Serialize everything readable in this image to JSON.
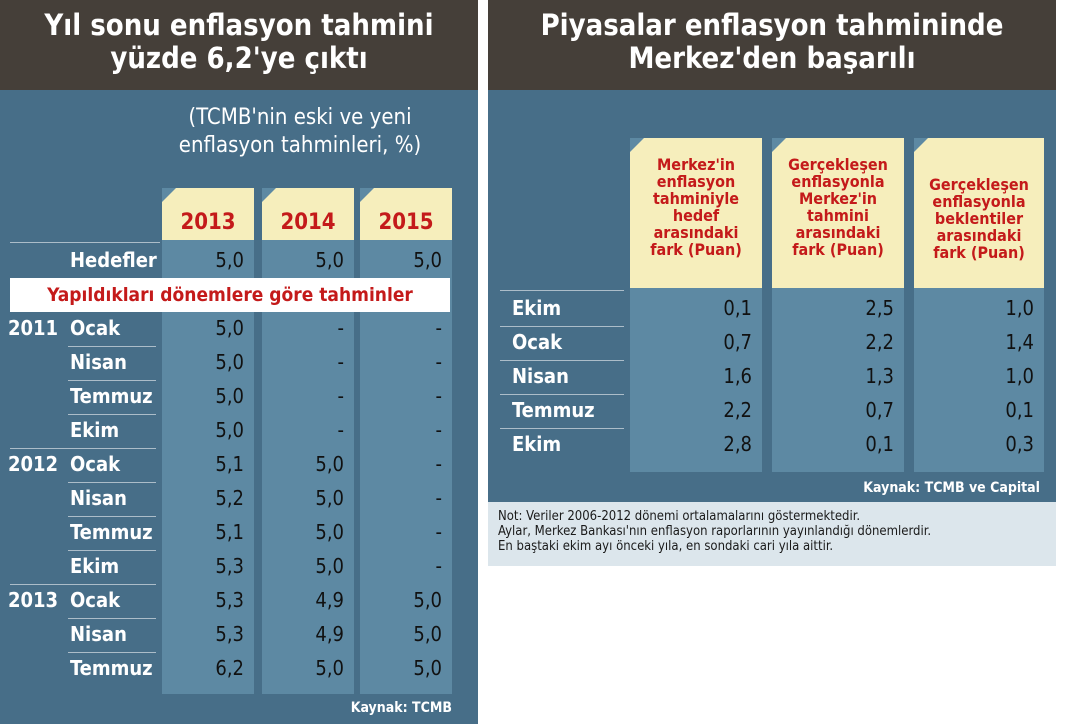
{
  "left": {
    "title_line1": "Yıl sonu enflasyon tahmini",
    "title_line2": "yüzde 6,2'ye çıktı",
    "subtitle_line1": "(TCMB'nin eski ve yeni",
    "subtitle_line2": "enflasyon tahminleri, %)",
    "columns": [
      "2013",
      "2014",
      "2015"
    ],
    "targets_label": "Hedefler",
    "targets": [
      "5,0",
      "5,0",
      "5,0"
    ],
    "banner": "Yapıldıkları dönemlere göre tahminler",
    "years": [
      "2011",
      "2012",
      "2013"
    ],
    "rows": [
      {
        "label": "Ocak",
        "v": [
          "5,0",
          "-",
          "-"
        ]
      },
      {
        "label": "Nisan",
        "v": [
          "5,0",
          "-",
          "-"
        ]
      },
      {
        "label": "Temmuz",
        "v": [
          "5,0",
          "-",
          "-"
        ]
      },
      {
        "label": "Ekim",
        "v": [
          "5,0",
          "-",
          "-"
        ]
      },
      {
        "label": "Ocak",
        "v": [
          "5,1",
          "5,0",
          "-"
        ]
      },
      {
        "label": "Nisan",
        "v": [
          "5,2",
          "5,0",
          "-"
        ]
      },
      {
        "label": "Temmuz",
        "v": [
          "5,1",
          "5,0",
          "-"
        ]
      },
      {
        "label": "Ekim",
        "v": [
          "5,3",
          "5,0",
          "-"
        ]
      },
      {
        "label": "Ocak",
        "v": [
          "5,3",
          "4,9",
          "5,0"
        ]
      },
      {
        "label": "Nisan",
        "v": [
          "5,3",
          "4,9",
          "5,0"
        ]
      },
      {
        "label": "Temmuz",
        "v": [
          "6,2",
          "5,0",
          "5,0"
        ]
      }
    ],
    "source": "Kaynak: TCMB"
  },
  "right": {
    "title_line1": "Piyasalar enflasyon tahmininde",
    "title_line2": "Merkez'den başarılı",
    "columns": [
      {
        "lines": [
          "Merkez'in",
          "enflasyon",
          "tahminiyle",
          "hedef",
          "arasındaki"
        ],
        "unit": "fark (Puan)"
      },
      {
        "lines": [
          "Gerçekleşen",
          "enflasyonla",
          "Merkez'in",
          "tahmini",
          "arasındaki"
        ],
        "unit": "fark (Puan)"
      },
      {
        "lines": [
          "Gerçekleşen",
          "enflasyonla",
          "beklentiler",
          "arasındaki"
        ],
        "unit": "fark (Puan)"
      }
    ],
    "rows": [
      {
        "label": "Ekim",
        "v": [
          "0,1",
          "2,5",
          "1,0"
        ]
      },
      {
        "label": "Ocak",
        "v": [
          "0,7",
          "2,2",
          "1,4"
        ]
      },
      {
        "label": "Nisan",
        "v": [
          "1,6",
          "1,3",
          "1,0"
        ]
      },
      {
        "label": "Temmuz",
        "v": [
          "2,2",
          "0,7",
          "0,1"
        ]
      },
      {
        "label": "Ekim",
        "v": [
          "2,8",
          "0,1",
          "0,3"
        ]
      }
    ],
    "source": "Kaynak: TCMB ve Capital",
    "note_line1": "Not: Veriler 2006-2012 dönemi ortalamalarını göstermektedir.",
    "note_line2": "Aylar, Merkez Bankası'nın enflasyon raporlarının yayınlandığı dönemlerdir.",
    "note_line3": "En baştaki ekim ayı önceki yıla, en sondaki cari yıla aittir."
  },
  "colors": {
    "header": "#453f39",
    "panel": "#476e88",
    "column": "#5d89a3",
    "col_head": "#f6eebc",
    "accent": "#c41a1a"
  }
}
